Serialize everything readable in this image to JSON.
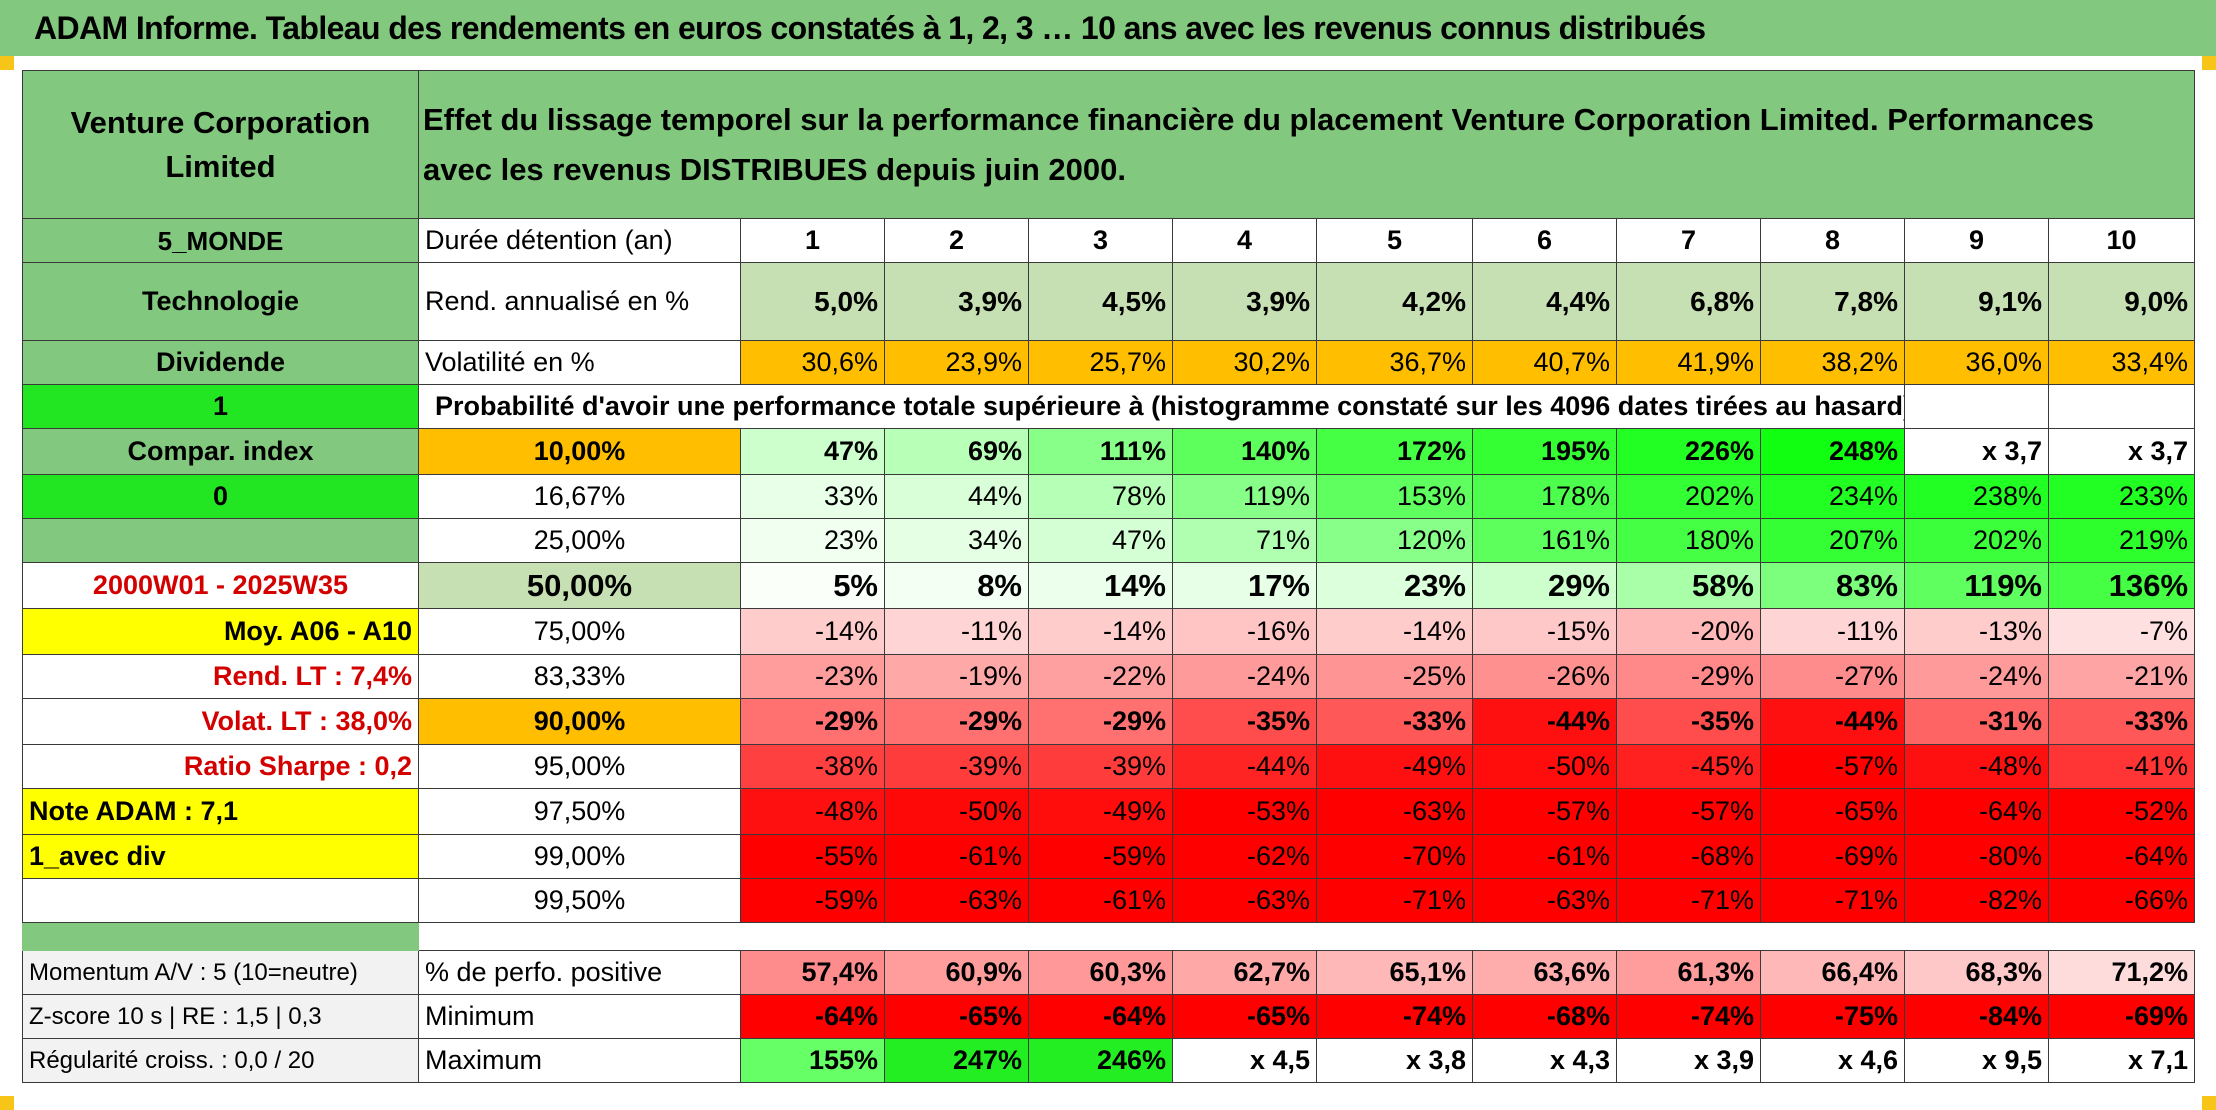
{
  "title": "ADAM Informe. Tableau des rendements en euros constatés à 1, 2, 3 … 10 ans avec les revenus connus distribués",
  "header": {
    "name": "Venture Corporation Limited",
    "description": "Effet du lissage temporel sur la performance financière du placement Venture Corporation Limited. Performances avec les revenus DISTRIBUES depuis juin 2000."
  },
  "left_panel": {
    "region": "5_MONDE",
    "sector": "Technologie",
    "dividend": "Dividende",
    "flag1": "1",
    "compar_index": "Compar. index",
    "flag0": "0",
    "blank": "",
    "period": "2000W01 - 2025W35",
    "moy": "Moy. A06 - A10",
    "rend_lt": "Rend. LT :   7,4%",
    "volat_lt": "Volat. LT :   38,0%",
    "sharpe": "Ratio Sharpe :    0,2",
    "note": "Note ADAM : 7,1",
    "avec_div": "1_avec div"
  },
  "years_label": "Durée détention (an)",
  "years": [
    "1",
    "2",
    "3",
    "4",
    "5",
    "6",
    "7",
    "8",
    "9",
    "10"
  ],
  "rend_label": "Rend. annualisé en %",
  "rend": [
    "5,0%",
    "3,9%",
    "4,5%",
    "3,9%",
    "4,2%",
    "4,4%",
    "6,8%",
    "7,8%",
    "9,1%",
    "9,0%"
  ],
  "volat_label": "Volatilité en %",
  "volat": [
    "30,6%",
    "23,9%",
    "25,7%",
    "30,2%",
    "36,7%",
    "40,7%",
    "41,9%",
    "38,2%",
    "36,0%",
    "33,4%"
  ],
  "prob_label": "Probabilité d'avoir une performance totale supérieure à (histogramme constaté sur les 4096 dates tirées au hasard)",
  "quantiles": [
    {
      "p": "10,00%",
      "v": [
        "47%",
        "69%",
        "111%",
        "140%",
        "172%",
        "195%",
        "226%",
        "248%",
        "x 3,7",
        "x 3,7"
      ]
    },
    {
      "p": "16,67%",
      "v": [
        "33%",
        "44%",
        "78%",
        "119%",
        "153%",
        "178%",
        "202%",
        "234%",
        "238%",
        "233%"
      ]
    },
    {
      "p": "25,00%",
      "v": [
        "23%",
        "34%",
        "47%",
        "71%",
        "120%",
        "161%",
        "180%",
        "207%",
        "202%",
        "219%"
      ]
    },
    {
      "p": "50,00%",
      "v": [
        "5%",
        "8%",
        "14%",
        "17%",
        "23%",
        "29%",
        "58%",
        "83%",
        "119%",
        "136%"
      ]
    },
    {
      "p": "75,00%",
      "v": [
        "-14%",
        "-11%",
        "-14%",
        "-16%",
        "-14%",
        "-15%",
        "-20%",
        "-11%",
        "-13%",
        "-7%"
      ]
    },
    {
      "p": "83,33%",
      "v": [
        "-23%",
        "-19%",
        "-22%",
        "-24%",
        "-25%",
        "-26%",
        "-29%",
        "-27%",
        "-24%",
        "-21%"
      ]
    },
    {
      "p": "90,00%",
      "v": [
        "-29%",
        "-29%",
        "-29%",
        "-35%",
        "-33%",
        "-44%",
        "-35%",
        "-44%",
        "-31%",
        "-33%"
      ]
    },
    {
      "p": "95,00%",
      "v": [
        "-38%",
        "-39%",
        "-39%",
        "-44%",
        "-49%",
        "-50%",
        "-45%",
        "-57%",
        "-48%",
        "-41%"
      ]
    },
    {
      "p": "97,50%",
      "v": [
        "-48%",
        "-50%",
        "-49%",
        "-53%",
        "-63%",
        "-57%",
        "-57%",
        "-65%",
        "-64%",
        "-52%"
      ]
    },
    {
      "p": "99,00%",
      "v": [
        "-55%",
        "-61%",
        "-59%",
        "-62%",
        "-70%",
        "-61%",
        "-68%",
        "-69%",
        "-80%",
        "-64%"
      ]
    },
    {
      "p": "99,50%",
      "v": [
        "-59%",
        "-63%",
        "-61%",
        "-63%",
        "-71%",
        "-63%",
        "-71%",
        "-71%",
        "-82%",
        "-66%"
      ]
    }
  ],
  "quantile_colors": [
    [
      "#ccffcc",
      "#b8ffb8",
      "#88ff88",
      "#5cff5c",
      "#44ff44",
      "#33ff33",
      "#22ff22",
      "#11ff11",
      "#ffffff",
      "#ffffff"
    ],
    [
      "#e8ffe8",
      "#d8ffd8",
      "#b6ffb6",
      "#88ff88",
      "#5eff5e",
      "#4cff4c",
      "#34ff34",
      "#22ff22",
      "#22ff22",
      "#22ff22"
    ],
    [
      "#f0fff0",
      "#e4ffe4",
      "#d4ffd4",
      "#b0ffb0",
      "#88ff88",
      "#5cff5c",
      "#44ff44",
      "#34ff34",
      "#3cff3c",
      "#2cff2c"
    ],
    [
      "#fafffa",
      "#f4fff4",
      "#ecffec",
      "#e6ffe6",
      "#dcffdc",
      "#ccffcc",
      "#a8ffa8",
      "#7cff7c",
      "#60ff60",
      "#44ff44"
    ],
    [
      "#ffcccc",
      "#ffd4d4",
      "#ffcccc",
      "#ffc4c4",
      "#ffcccc",
      "#ffc8c8",
      "#ffb8b8",
      "#ffd4d4",
      "#ffcccc",
      "#ffe0e0"
    ],
    [
      "#ff9c9c",
      "#ffa8a8",
      "#ffa0a0",
      "#ff9a9a",
      "#ff9494",
      "#ff9090",
      "#ff8888",
      "#ff8c8c",
      "#ff9a9a",
      "#ffa4a4"
    ],
    [
      "#ff7070",
      "#ff7070",
      "#ff7070",
      "#ff4c4c",
      "#ff5858",
      "#ff1010",
      "#ff4c4c",
      "#ff1010",
      "#ff6464",
      "#ff5858"
    ],
    [
      "#ff4040",
      "#ff3c3c",
      "#ff3c3c",
      "#ff2424",
      "#ff1010",
      "#ff0c0c",
      "#ff2020",
      "#ff0000",
      "#ff1010",
      "#ff3434"
    ],
    [
      "#ff1010",
      "#ff0808",
      "#ff0c0c",
      "#ff0000",
      "#ff0000",
      "#ff0000",
      "#ff0000",
      "#ff0000",
      "#ff0000",
      "#ff0000"
    ],
    [
      "#ff0000",
      "#ff0000",
      "#ff0000",
      "#ff0000",
      "#ff0000",
      "#ff0000",
      "#ff0000",
      "#ff0000",
      "#ff0000",
      "#ff0000"
    ],
    [
      "#ff0000",
      "#ff0000",
      "#ff0000",
      "#ff0000",
      "#ff0000",
      "#ff0000",
      "#ff0000",
      "#ff0000",
      "#ff0000",
      "#ff0000"
    ]
  ],
  "stats": [
    {
      "left": "Momentum A/V : 5 (10=neutre)",
      "label": "% de perfo. positive",
      "v": [
        "57,4%",
        "60,9%",
        "60,3%",
        "62,7%",
        "65,1%",
        "63,6%",
        "61,3%",
        "66,4%",
        "68,3%",
        "71,2%"
      ],
      "colors": [
        "#ff8c8c",
        "#ff9c9c",
        "#ff9898",
        "#ffa8a8",
        "#ffb8b8",
        "#ffacac",
        "#ff9c9c",
        "#ffb8b8",
        "#ffc8c8",
        "#ffdcdc"
      ]
    },
    {
      "left": "Z-score 10 s | RE : 1,5 | 0,3",
      "label": "Minimum",
      "v": [
        "-64%",
        "-65%",
        "-64%",
        "-65%",
        "-74%",
        "-68%",
        "-74%",
        "-75%",
        "-84%",
        "-69%"
      ],
      "colors": [
        "#ff0000",
        "#ff0000",
        "#ff0000",
        "#ff0000",
        "#ff0000",
        "#ff0000",
        "#ff0000",
        "#ff0000",
        "#ff0000",
        "#ff0000"
      ]
    },
    {
      "left": "Régularité croiss. : 0,0 / 20",
      "label": "Maximum",
      "v": [
        "155%",
        "247%",
        "246%",
        "x 4,5",
        "x 3,8",
        "x 4,3",
        "x 3,9",
        "x 4,6",
        "x 9,5",
        "x 7,1"
      ],
      "colors": [
        "#66ff66",
        "#22ee22",
        "#22ee22",
        "#ffffff",
        "#ffffff",
        "#ffffff",
        "#ffffff",
        "#ffffff",
        "#ffffff",
        "#ffffff"
      ]
    }
  ],
  "colors": {
    "header_green": "#82c87e",
    "bright_green": "#22e622",
    "yellow": "#ffff00",
    "orange": "#ffbf00",
    "dark_red_text": "#d40000"
  }
}
